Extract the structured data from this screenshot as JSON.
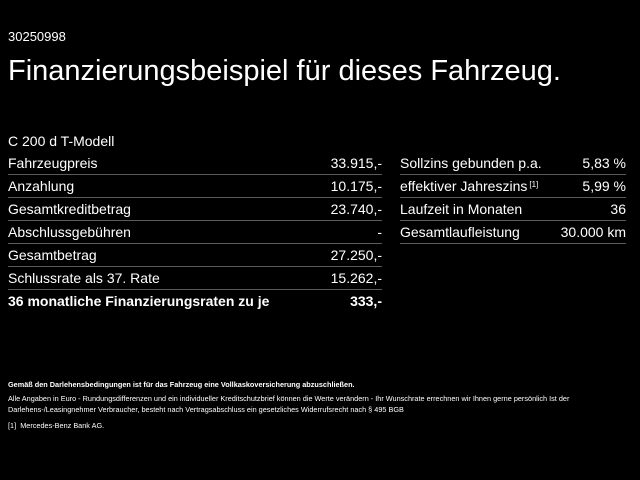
{
  "reference_number": "30250998",
  "headline": "Finanzierungsbeispiel für dieses Fahrzeug.",
  "model": "C 200 d T-Modell",
  "left_table": [
    {
      "label": "Fahrzeugpreis",
      "value": "33.915,-"
    },
    {
      "label": "Anzahlung",
      "value": "10.175,-"
    },
    {
      "label": "Gesamtkreditbetrag",
      "value": "23.740,-"
    },
    {
      "label": "Abschlussgebühren",
      "value": "-"
    },
    {
      "label": "Gesamtbetrag",
      "value": "27.250,-"
    },
    {
      "label": "Schlussrate als 37. Rate",
      "value": "15.262,-"
    },
    {
      "label": "36 monatliche Finanzierungsraten zu je",
      "value": "333,-"
    }
  ],
  "right_table": [
    {
      "label": "Sollzins gebunden p.a.",
      "value": "5,83 %",
      "footnote": ""
    },
    {
      "label": "effektiver Jahreszins",
      "value": "5,99 %",
      "footnote": "[1]"
    },
    {
      "label": "Laufzeit in Monaten",
      "value": "36",
      "footnote": ""
    },
    {
      "label": "Gesamtlaufleistung",
      "value": "30.000 km",
      "footnote": ""
    }
  ],
  "notes": {
    "insurance": "Gemäß den Darlehensbedingungen ist für das Fahrzeug eine Vollkaskoversicherung abzuschließen.",
    "disclaimer": "Alle Angaben in Euro - Rundungsdifferenzen und ein individueller Kreditschutzbrief können die Werte verändern - Ihr Wunschrate errechnen wir Ihnen gerne persönlich Ist der Darlehens-/Leasingnehmer Verbraucher, besteht nach Vertragsabschluss ein gesetzliches Widerrufsrecht nach § 495 BGB",
    "footnote_marker": "[1]",
    "footnote_text": "Mercedes-Benz Bank AG."
  },
  "colors": {
    "background": "#000000",
    "text": "#ffffff",
    "divider": "#5a5a5a"
  }
}
